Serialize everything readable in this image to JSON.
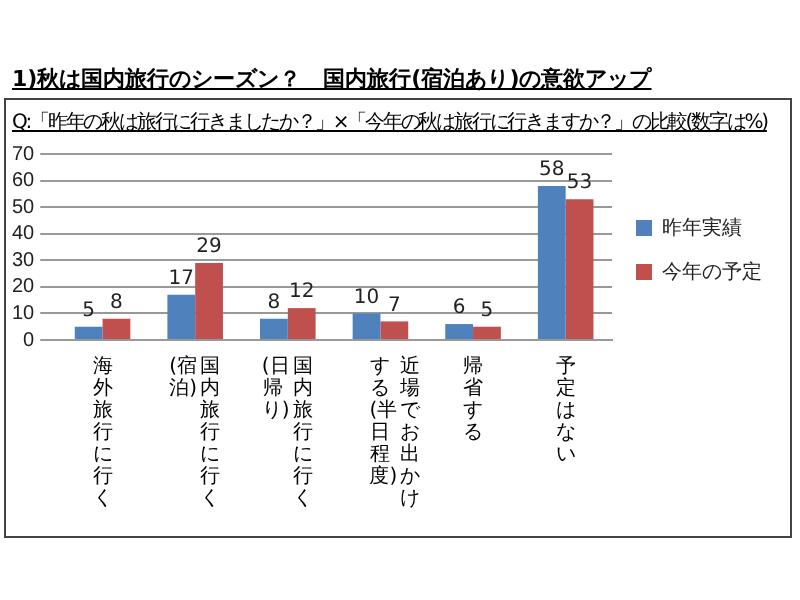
{
  "chart_data": {
    "type": "bar",
    "title": "1)秋は国内旅行のシーズン？　国内旅行(宿泊あり)の意欲アップ",
    "subtitle": "Q:「昨年の秋は旅行に行きましたか？」×「今年の秋は旅行に行きますか？」の比較(数字は%)",
    "categories": [
      "海外旅行に行く",
      "国内旅行に行く(宿泊)",
      "国内旅行に行く(日帰り)",
      "近場でお出かけする(半日程度)",
      "帰省する",
      "予定はない"
    ],
    "series": [
      {
        "name": "昨年実績",
        "color": "#4f81bd",
        "values": [
          5,
          17,
          8,
          10,
          6,
          58
        ]
      },
      {
        "name": "今年の予定",
        "color": "#c0504d",
        "values": [
          8,
          29,
          12,
          7,
          5,
          53
        ]
      }
    ],
    "ylim": [
      0,
      70
    ],
    "yticks": [
      0,
      10,
      20,
      30,
      40,
      50,
      60,
      70
    ],
    "grid": "y",
    "legend": "right",
    "data_labels": true
  }
}
